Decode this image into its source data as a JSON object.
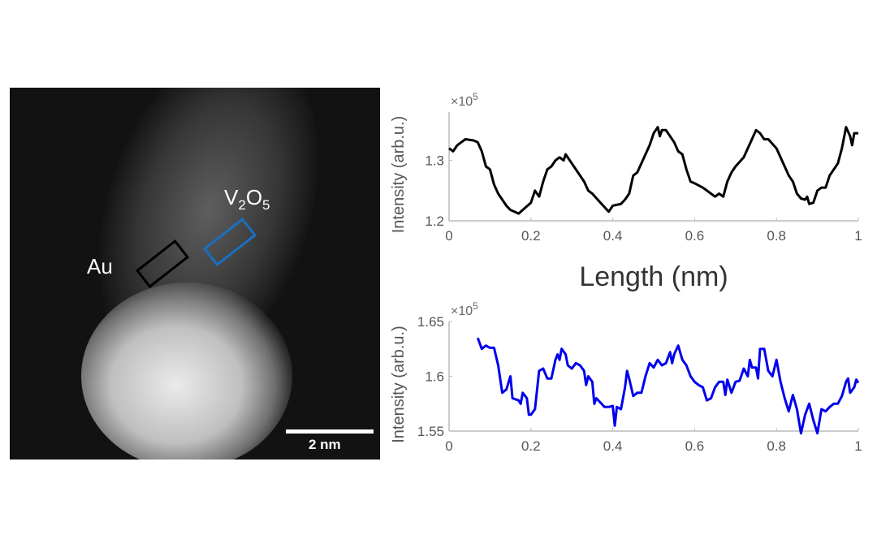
{
  "micrograph": {
    "label_au": "Au",
    "label_v2o5": {
      "base1": "V",
      "sub1": "2",
      "base2": "O",
      "sub2": "5"
    },
    "scale_bar": "2 nm",
    "colors": {
      "au_box": "#000000",
      "v2o5_box": "#1a6fc0"
    }
  },
  "shared_xlabel": "Length (nm)",
  "chart_data": [
    {
      "type": "line",
      "ylabel": "Intensity (arb.u.)",
      "exponent": "×10",
      "exponent_power": "5",
      "xlim": [
        0,
        1
      ],
      "ylim": [
        1.2,
        1.38
      ],
      "xticks": [
        "0",
        "0.2",
        "0.4",
        "0.6",
        "0.8",
        "1"
      ],
      "yticks": [
        "1.2",
        "1.3"
      ],
      "color": "#000000",
      "x": [
        0,
        0.01,
        0.02,
        0.03,
        0.04,
        0.06,
        0.07,
        0.08,
        0.09,
        0.1,
        0.11,
        0.12,
        0.14,
        0.15,
        0.16,
        0.17,
        0.18,
        0.2,
        0.21,
        0.22,
        0.23,
        0.24,
        0.25,
        0.26,
        0.27,
        0.28,
        0.285,
        0.3,
        0.31,
        0.33,
        0.34,
        0.35,
        0.37,
        0.39,
        0.4,
        0.42,
        0.43,
        0.44,
        0.45,
        0.46,
        0.48,
        0.49,
        0.5,
        0.51,
        0.515,
        0.52,
        0.53,
        0.55,
        0.56,
        0.57,
        0.58,
        0.59,
        0.6,
        0.62,
        0.64,
        0.65,
        0.66,
        0.67,
        0.68,
        0.69,
        0.7,
        0.72,
        0.73,
        0.74,
        0.75,
        0.76,
        0.77,
        0.78,
        0.8,
        0.81,
        0.82,
        0.83,
        0.84,
        0.85,
        0.86,
        0.87,
        0.875,
        0.88,
        0.89,
        0.9,
        0.91,
        0.92,
        0.93,
        0.95,
        0.96,
        0.97,
        0.98,
        0.985,
        0.99,
        1.0
      ],
      "y": [
        1.32,
        1.315,
        1.325,
        1.33,
        1.335,
        1.333,
        1.33,
        1.315,
        1.29,
        1.285,
        1.26,
        1.245,
        1.225,
        1.218,
        1.215,
        1.212,
        1.218,
        1.23,
        1.25,
        1.24,
        1.265,
        1.285,
        1.29,
        1.3,
        1.305,
        1.3,
        1.31,
        1.295,
        1.285,
        1.265,
        1.25,
        1.245,
        1.23,
        1.215,
        1.225,
        1.228,
        1.235,
        1.245,
        1.275,
        1.28,
        1.31,
        1.325,
        1.345,
        1.355,
        1.34,
        1.35,
        1.35,
        1.33,
        1.315,
        1.31,
        1.285,
        1.265,
        1.262,
        1.255,
        1.245,
        1.24,
        1.245,
        1.24,
        1.265,
        1.28,
        1.29,
        1.305,
        1.32,
        1.335,
        1.35,
        1.345,
        1.335,
        1.335,
        1.32,
        1.305,
        1.29,
        1.275,
        1.265,
        1.245,
        1.237,
        1.235,
        1.24,
        1.228,
        1.23,
        1.25,
        1.255,
        1.255,
        1.275,
        1.295,
        1.32,
        1.355,
        1.34,
        1.325,
        1.345,
        1.345
      ]
    },
    {
      "type": "line",
      "ylabel": "Intensity (arb.u.)",
      "exponent": "×10",
      "exponent_power": "5",
      "xlim": [
        0,
        1
      ],
      "ylim": [
        1.55,
        1.65
      ],
      "xticks": [
        "0",
        "0.2",
        "0.4",
        "0.6",
        "0.8",
        "1"
      ],
      "yticks": [
        "1.55",
        "1.6",
        "1.65"
      ],
      "color": "#0000ee",
      "x": [
        0.07,
        0.08,
        0.09,
        0.1,
        0.11,
        0.12,
        0.13,
        0.14,
        0.15,
        0.155,
        0.17,
        0.175,
        0.18,
        0.19,
        0.195,
        0.2,
        0.21,
        0.22,
        0.23,
        0.24,
        0.25,
        0.26,
        0.265,
        0.27,
        0.275,
        0.285,
        0.29,
        0.3,
        0.31,
        0.32,
        0.33,
        0.335,
        0.34,
        0.35,
        0.355,
        0.36,
        0.38,
        0.39,
        0.4,
        0.405,
        0.41,
        0.42,
        0.43,
        0.435,
        0.44,
        0.45,
        0.46,
        0.47,
        0.48,
        0.49,
        0.5,
        0.51,
        0.52,
        0.53,
        0.54,
        0.545,
        0.55,
        0.56,
        0.57,
        0.58,
        0.59,
        0.6,
        0.61,
        0.62,
        0.63,
        0.64,
        0.65,
        0.66,
        0.67,
        0.675,
        0.68,
        0.69,
        0.7,
        0.71,
        0.72,
        0.73,
        0.735,
        0.74,
        0.75,
        0.755,
        0.76,
        0.77,
        0.78,
        0.79,
        0.8,
        0.81,
        0.82,
        0.83,
        0.84,
        0.85,
        0.86,
        0.87,
        0.88,
        0.89,
        0.9,
        0.91,
        0.92,
        0.93,
        0.94,
        0.95,
        0.96,
        0.97,
        0.975,
        0.98,
        0.99,
        0.995,
        1.0
      ],
      "y": [
        1.635,
        1.625,
        1.628,
        1.626,
        1.626,
        1.61,
        1.585,
        1.588,
        1.6,
        1.58,
        1.578,
        1.575,
        1.585,
        1.58,
        1.565,
        1.565,
        1.57,
        1.605,
        1.607,
        1.598,
        1.598,
        1.615,
        1.62,
        1.615,
        1.625,
        1.62,
        1.61,
        1.607,
        1.612,
        1.61,
        1.605,
        1.592,
        1.6,
        1.595,
        1.575,
        1.58,
        1.572,
        1.572,
        1.573,
        1.555,
        1.572,
        1.57,
        1.59,
        1.605,
        1.598,
        1.582,
        1.585,
        1.585,
        1.6,
        1.612,
        1.608,
        1.615,
        1.61,
        1.612,
        1.622,
        1.612,
        1.62,
        1.628,
        1.615,
        1.61,
        1.6,
        1.595,
        1.592,
        1.59,
        1.578,
        1.58,
        1.59,
        1.595,
        1.595,
        1.583,
        1.597,
        1.585,
        1.595,
        1.596,
        1.607,
        1.6,
        1.615,
        1.608,
        1.608,
        1.598,
        1.625,
        1.625,
        1.605,
        1.6,
        1.615,
        1.595,
        1.58,
        1.568,
        1.583,
        1.57,
        1.548,
        1.565,
        1.575,
        1.56,
        1.548,
        1.57,
        1.568,
        1.572,
        1.575,
        1.575,
        1.582,
        1.595,
        1.598,
        1.585,
        1.59,
        1.597,
        1.594
      ]
    }
  ]
}
